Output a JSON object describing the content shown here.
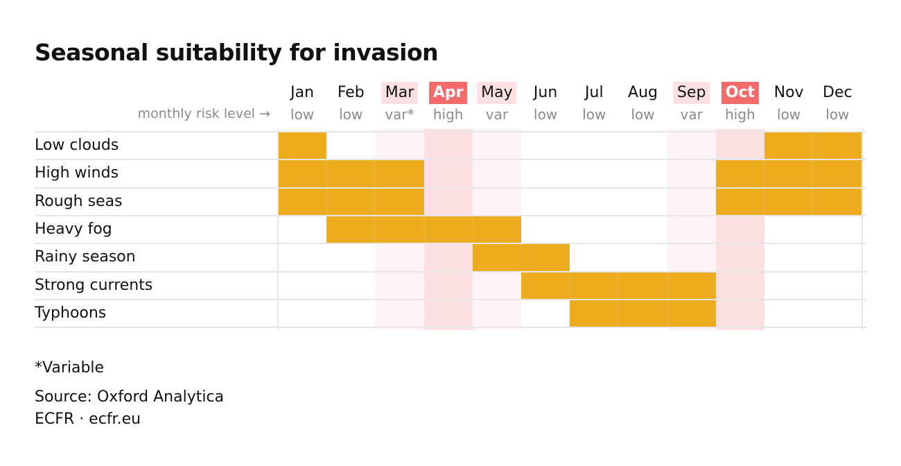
{
  "title": "Seasonal suitability for invasion",
  "risk_axis_label": "monthly risk level →",
  "colors": {
    "filled": "#ecac1e",
    "high": "#f26a6a",
    "high_band": "#fce0e2",
    "var_label": "#fde0e1",
    "var_band": "#fef4f5"
  },
  "chart_data": {
    "type": "heatmap",
    "title": "Seasonal suitability for invasion",
    "columns": [
      "Jan",
      "Feb",
      "Mar",
      "Apr",
      "May",
      "Jun",
      "Jul",
      "Aug",
      "Sep",
      "Oct",
      "Nov",
      "Dec"
    ],
    "risk_levels": [
      "low",
      "low",
      "var*",
      "high",
      "var",
      "low",
      "low",
      "low",
      "var",
      "high",
      "low",
      "low"
    ],
    "risk_class": [
      "low",
      "low",
      "var",
      "high",
      "var",
      "low",
      "low",
      "low",
      "var",
      "high",
      "low",
      "low"
    ],
    "rows": [
      {
        "name": "Low clouds",
        "values": [
          1,
          0,
          0,
          0,
          0,
          0,
          0,
          0,
          0,
          0,
          1,
          1
        ]
      },
      {
        "name": "High winds",
        "values": [
          1,
          1,
          1,
          0,
          0,
          0,
          0,
          0,
          0,
          1,
          1,
          1
        ]
      },
      {
        "name": "Rough seas",
        "values": [
          1,
          1,
          1,
          0,
          0,
          0,
          0,
          0,
          0,
          1,
          1,
          1
        ]
      },
      {
        "name": "Heavy fog",
        "values": [
          0,
          1,
          1,
          1,
          1,
          0,
          0,
          0,
          0,
          0,
          0,
          0
        ]
      },
      {
        "name": "Rainy season",
        "values": [
          0,
          0,
          0,
          0,
          1,
          1,
          0,
          0,
          0,
          0,
          0,
          0
        ]
      },
      {
        "name": "Strong currents",
        "values": [
          0,
          0,
          0,
          0,
          0,
          1,
          1,
          1,
          1,
          0,
          0,
          0
        ]
      },
      {
        "name": "Typhoons",
        "values": [
          0,
          0,
          0,
          0,
          0,
          0,
          1,
          1,
          1,
          0,
          0,
          0
        ]
      }
    ]
  },
  "footnote": "*Variable",
  "source": "Source: Oxford Analytica",
  "credit": "ECFR · ecfr.eu"
}
